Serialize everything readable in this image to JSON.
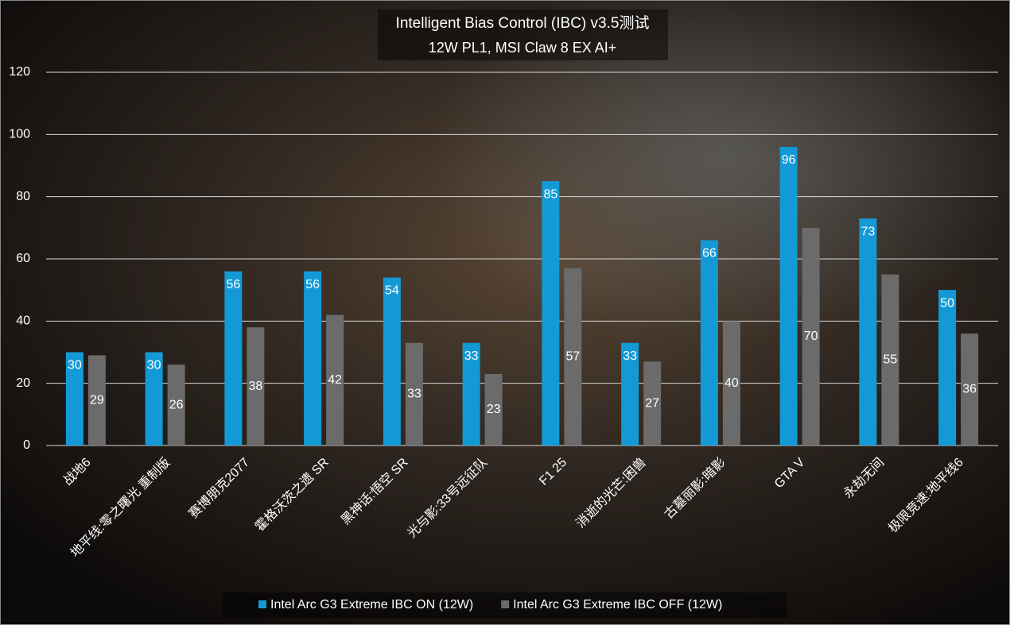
{
  "chart_data": {
    "type": "bar",
    "title": "Intelligent Bias Control (IBC) v3.5测试",
    "subtitle": "12W PL1, MSI Claw 8 EX AI+",
    "categories": [
      "战地6",
      "地平线:零之曙光 重制版",
      "赛博朋克2077",
      "霍格沃茨之遗 SR",
      "黑神话:悟空 SR",
      "光与影:33号远征队",
      "F1 25",
      "消逝的光芒:困兽",
      "古墓丽影:暗影",
      "GTA V",
      "永劫无间",
      "极限竞速:地平线6"
    ],
    "series": [
      {
        "name": "Intel Arc G3 Extreme IBC ON (12W)",
        "color": "#139ad6",
        "values": [
          30,
          30,
          56,
          56,
          54,
          33,
          85,
          33,
          66,
          96,
          73,
          50
        ]
      },
      {
        "name": "Intel Arc G3 Extreme IBC OFF (12W)",
        "color": "#6b6b6b",
        "values": [
          29,
          26,
          38,
          42,
          33,
          23,
          57,
          27,
          40,
          70,
          55,
          36
        ]
      }
    ],
    "ylim": [
      0,
      120
    ],
    "yticks": [
      0,
      20,
      40,
      60,
      80,
      100,
      120
    ],
    "grid": true,
    "legend": "bottom"
  }
}
